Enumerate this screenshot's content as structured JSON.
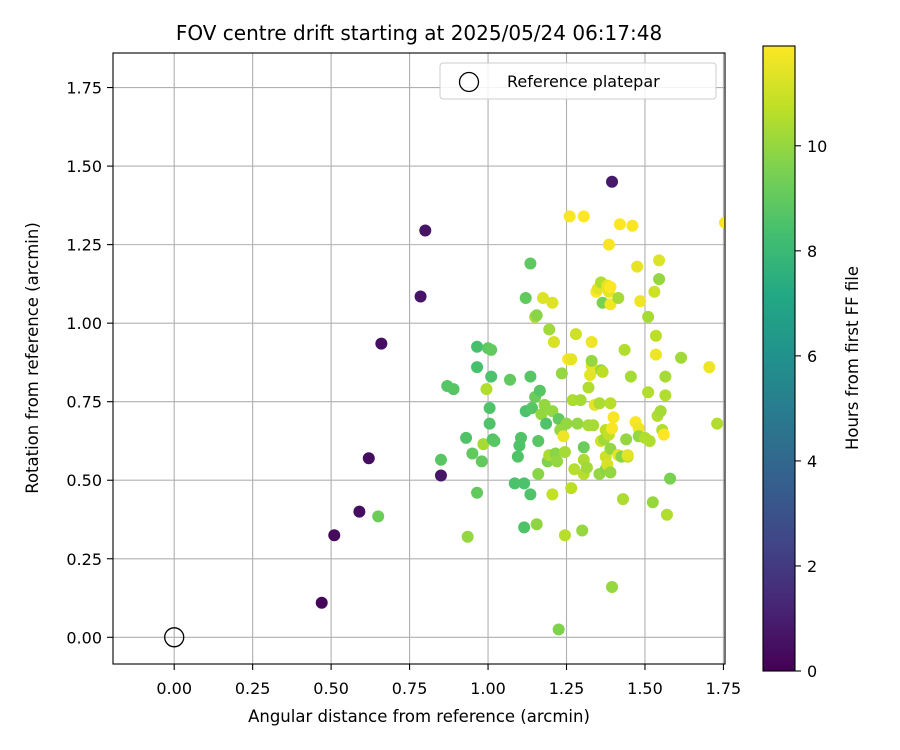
{
  "chart_data": {
    "type": "scatter",
    "title": "FOV centre drift starting at 2025/05/24 06:17:48",
    "xlabel": "Angular distance from reference (arcmin)",
    "ylabel": "Rotation from reference (arcmin)",
    "xlim": [
      -0.195,
      1.755
    ],
    "ylim": [
      -0.085,
      1.86
    ],
    "xticks": [
      "0.00",
      "0.25",
      "0.50",
      "0.75",
      "1.00",
      "1.25",
      "1.50",
      "1.75"
    ],
    "yticks": [
      "0.00",
      "0.25",
      "0.50",
      "0.75",
      "1.00",
      "1.25",
      "1.50",
      "1.75"
    ],
    "grid": true,
    "legend": {
      "placement": "top-right",
      "entries": [
        "Reference platepar"
      ]
    },
    "reference_point": {
      "x": 0.0,
      "y": 0.0,
      "marker": "hollow-circle",
      "label": "Reference platepar"
    },
    "colorbar": {
      "label": "Hours from first FF file",
      "colormap": "viridis",
      "min": 0,
      "max": 11.9,
      "ticks": [
        "0",
        "2",
        "4",
        "6",
        "8",
        "10"
      ]
    },
    "series": [
      {
        "points": [
          [
            0.47,
            0.11,
            0.2
          ],
          [
            0.51,
            0.325,
            0.3
          ],
          [
            0.59,
            0.4,
            0.4
          ],
          [
            0.62,
            0.57,
            0.4
          ],
          [
            0.66,
            0.935,
            0.5
          ],
          [
            0.785,
            1.085,
            0.6
          ],
          [
            0.8,
            1.295,
            0.6
          ],
          [
            0.85,
            0.515,
            0.7
          ],
          [
            1.395,
            1.45,
            0.8
          ],
          [
            0.65,
            0.385,
            9.2
          ],
          [
            0.85,
            0.565,
            8.8
          ],
          [
            0.87,
            0.8,
            8.7
          ],
          [
            0.89,
            0.79,
            8.7
          ],
          [
            0.93,
            0.635,
            8.6
          ],
          [
            0.935,
            0.32,
            10.0
          ],
          [
            0.95,
            0.585,
            9.0
          ],
          [
            0.965,
            0.46,
            9.0
          ],
          [
            0.965,
            0.925,
            8.4
          ],
          [
            0.965,
            0.86,
            8.4
          ],
          [
            0.98,
            0.56,
            9.0
          ],
          [
            0.985,
            0.615,
            10.3
          ],
          [
            0.995,
            0.79,
            10.5
          ],
          [
            1.0,
            0.92,
            8.9
          ],
          [
            1.005,
            0.68,
            8.6
          ],
          [
            1.005,
            0.73,
            8.6
          ],
          [
            1.01,
            0.915,
            9.0
          ],
          [
            1.01,
            0.83,
            8.5
          ],
          [
            1.015,
            0.63,
            8.6
          ],
          [
            1.02,
            0.625,
            8.8
          ],
          [
            1.07,
            0.82,
            9.0
          ],
          [
            1.085,
            0.49,
            8.5
          ],
          [
            1.095,
            0.575,
            8.6
          ],
          [
            1.1,
            0.61,
            8.6
          ],
          [
            1.105,
            0.635,
            8.6
          ],
          [
            1.115,
            0.49,
            8.5
          ],
          [
            1.115,
            0.35,
            8.6
          ],
          [
            1.12,
            0.72,
            8.5
          ],
          [
            1.12,
            1.08,
            9.0
          ],
          [
            1.135,
            1.19,
            8.9
          ],
          [
            1.135,
            0.455,
            8.6
          ],
          [
            1.135,
            0.83,
            8.7
          ],
          [
            1.14,
            0.73,
            8.7
          ],
          [
            1.15,
            0.765,
            9.2
          ],
          [
            1.15,
            1.02,
            10.5
          ],
          [
            1.155,
            1.025,
            9.8
          ],
          [
            1.155,
            0.36,
            9.9
          ],
          [
            1.16,
            0.52,
            9.8
          ],
          [
            1.16,
            0.625,
            8.8
          ],
          [
            1.165,
            0.785,
            8.7
          ],
          [
            1.17,
            0.71,
            10.0
          ],
          [
            1.175,
            1.08,
            11.3
          ],
          [
            1.18,
            0.74,
            10.0
          ],
          [
            1.185,
            0.68,
            8.6
          ],
          [
            1.19,
            0.56,
            9.6
          ],
          [
            1.195,
            0.98,
            10.2
          ],
          [
            1.195,
            0.58,
            10.4
          ],
          [
            1.205,
            1.065,
            11.3
          ],
          [
            1.205,
            0.72,
            10.0
          ],
          [
            1.205,
            0.455,
            10.8
          ],
          [
            1.21,
            0.94,
            11.2
          ],
          [
            1.215,
            0.585,
            9.8
          ],
          [
            1.22,
            0.56,
            10.0
          ],
          [
            1.225,
            0.025,
            9.6
          ],
          [
            1.225,
            0.695,
            9.0
          ],
          [
            1.23,
            0.66,
            10.0
          ],
          [
            1.235,
            0.84,
            10.0
          ],
          [
            1.24,
            0.64,
            11.6
          ],
          [
            1.245,
            0.325,
            10.6
          ],
          [
            1.245,
            0.59,
            10.3
          ],
          [
            1.25,
            0.68,
            10.0
          ],
          [
            1.255,
            0.885,
            11.8
          ],
          [
            1.26,
            1.34,
            11.8
          ],
          [
            1.265,
            0.475,
            10.7
          ],
          [
            1.265,
            0.885,
            11.5
          ],
          [
            1.27,
            0.755,
            10.4
          ],
          [
            1.275,
            0.535,
            10.6
          ],
          [
            1.28,
            0.965,
            11.0
          ],
          [
            1.285,
            0.68,
            10.0
          ],
          [
            1.295,
            0.755,
            10.3
          ],
          [
            1.3,
            0.34,
            10.0
          ],
          [
            1.305,
            1.34,
            11.9
          ],
          [
            1.305,
            0.565,
            10.4
          ],
          [
            1.305,
            0.52,
            10.6
          ],
          [
            1.305,
            0.605,
            9.2
          ],
          [
            1.315,
            0.54,
            10.2
          ],
          [
            1.32,
            0.675,
            10.3
          ],
          [
            1.32,
            0.795,
            10.5
          ],
          [
            1.325,
            0.835,
            11.4
          ],
          [
            1.33,
            0.865,
            11.5
          ],
          [
            1.33,
            0.94,
            11.6
          ],
          [
            1.33,
            0.88,
            10.0
          ],
          [
            1.335,
            0.675,
            10.3
          ],
          [
            1.34,
            0.74,
            11.4
          ],
          [
            1.345,
            1.1,
            11.9
          ],
          [
            1.35,
            1.11,
            11.4
          ],
          [
            1.355,
            0.745,
            10.4
          ],
          [
            1.355,
            0.52,
            10.0
          ],
          [
            1.36,
            0.625,
            11.0
          ],
          [
            1.36,
            1.13,
            10.5
          ],
          [
            1.36,
            0.85,
            10.0
          ],
          [
            1.365,
            0.845,
            10.7
          ],
          [
            1.365,
            1.065,
            9.5
          ],
          [
            1.37,
            0.63,
            10.2
          ],
          [
            1.375,
            0.575,
            11.0
          ],
          [
            1.375,
            0.66,
            10.7
          ],
          [
            1.375,
            0.535,
            9.8
          ],
          [
            1.38,
            0.55,
            11.2
          ],
          [
            1.38,
            1.12,
            11.5
          ],
          [
            1.385,
            0.645,
            10.8
          ],
          [
            1.385,
            1.25,
            11.8
          ],
          [
            1.385,
            1.1,
            11.5
          ],
          [
            1.39,
            0.745,
            10.6
          ],
          [
            1.39,
            0.6,
            10.0
          ],
          [
            1.39,
            0.525,
            10.0
          ],
          [
            1.39,
            1.06,
            11.7
          ],
          [
            1.39,
            1.115,
            11.9
          ],
          [
            1.395,
            0.16,
            10.0
          ],
          [
            1.395,
            0.665,
            11.8
          ],
          [
            1.4,
            0.7,
            11.8
          ],
          [
            1.415,
            0.58,
            11.5
          ],
          [
            1.415,
            1.08,
            10.3
          ],
          [
            1.42,
            1.315,
            11.9
          ],
          [
            1.425,
            0.575,
            9.8
          ],
          [
            1.43,
            0.44,
            10.4
          ],
          [
            1.435,
            0.915,
            10.5
          ],
          [
            1.44,
            0.63,
            10.0
          ],
          [
            1.445,
            0.575,
            10.6
          ],
          [
            1.445,
            0.58,
            11.4
          ],
          [
            1.455,
            0.83,
            10.3
          ],
          [
            1.46,
            1.31,
            11.8
          ],
          [
            1.47,
            0.685,
            11.8
          ],
          [
            1.48,
            0.665,
            11.6
          ],
          [
            1.48,
            0.64,
            10.0
          ],
          [
            1.475,
            1.18,
            11.5
          ],
          [
            1.485,
            1.07,
            11.6
          ],
          [
            1.5,
            0.635,
            10.5
          ],
          [
            1.51,
            1.02,
            10.3
          ],
          [
            1.51,
            0.78,
            10.5
          ],
          [
            1.515,
            0.625,
            10.5
          ],
          [
            1.525,
            0.43,
            10.0
          ],
          [
            1.53,
            1.1,
            11.0
          ],
          [
            1.535,
            0.9,
            11.6
          ],
          [
            1.535,
            0.96,
            10.7
          ],
          [
            1.54,
            0.705,
            10.5
          ],
          [
            1.545,
            1.14,
            10.0
          ],
          [
            1.545,
            1.2,
            11.3
          ],
          [
            1.55,
            0.72,
            10.3
          ],
          [
            1.555,
            0.66,
            10.5
          ],
          [
            1.56,
            0.645,
            11.9
          ],
          [
            1.565,
            0.77,
            10.5
          ],
          [
            1.565,
            0.83,
            10.3
          ],
          [
            1.57,
            0.39,
            10.5
          ],
          [
            1.58,
            0.505,
            9.5
          ],
          [
            1.615,
            0.89,
            10.2
          ],
          [
            1.705,
            0.86,
            11.6
          ],
          [
            1.73,
            0.68,
            10.5
          ],
          [
            1.755,
            1.32,
            11.8
          ]
        ]
      }
    ]
  }
}
